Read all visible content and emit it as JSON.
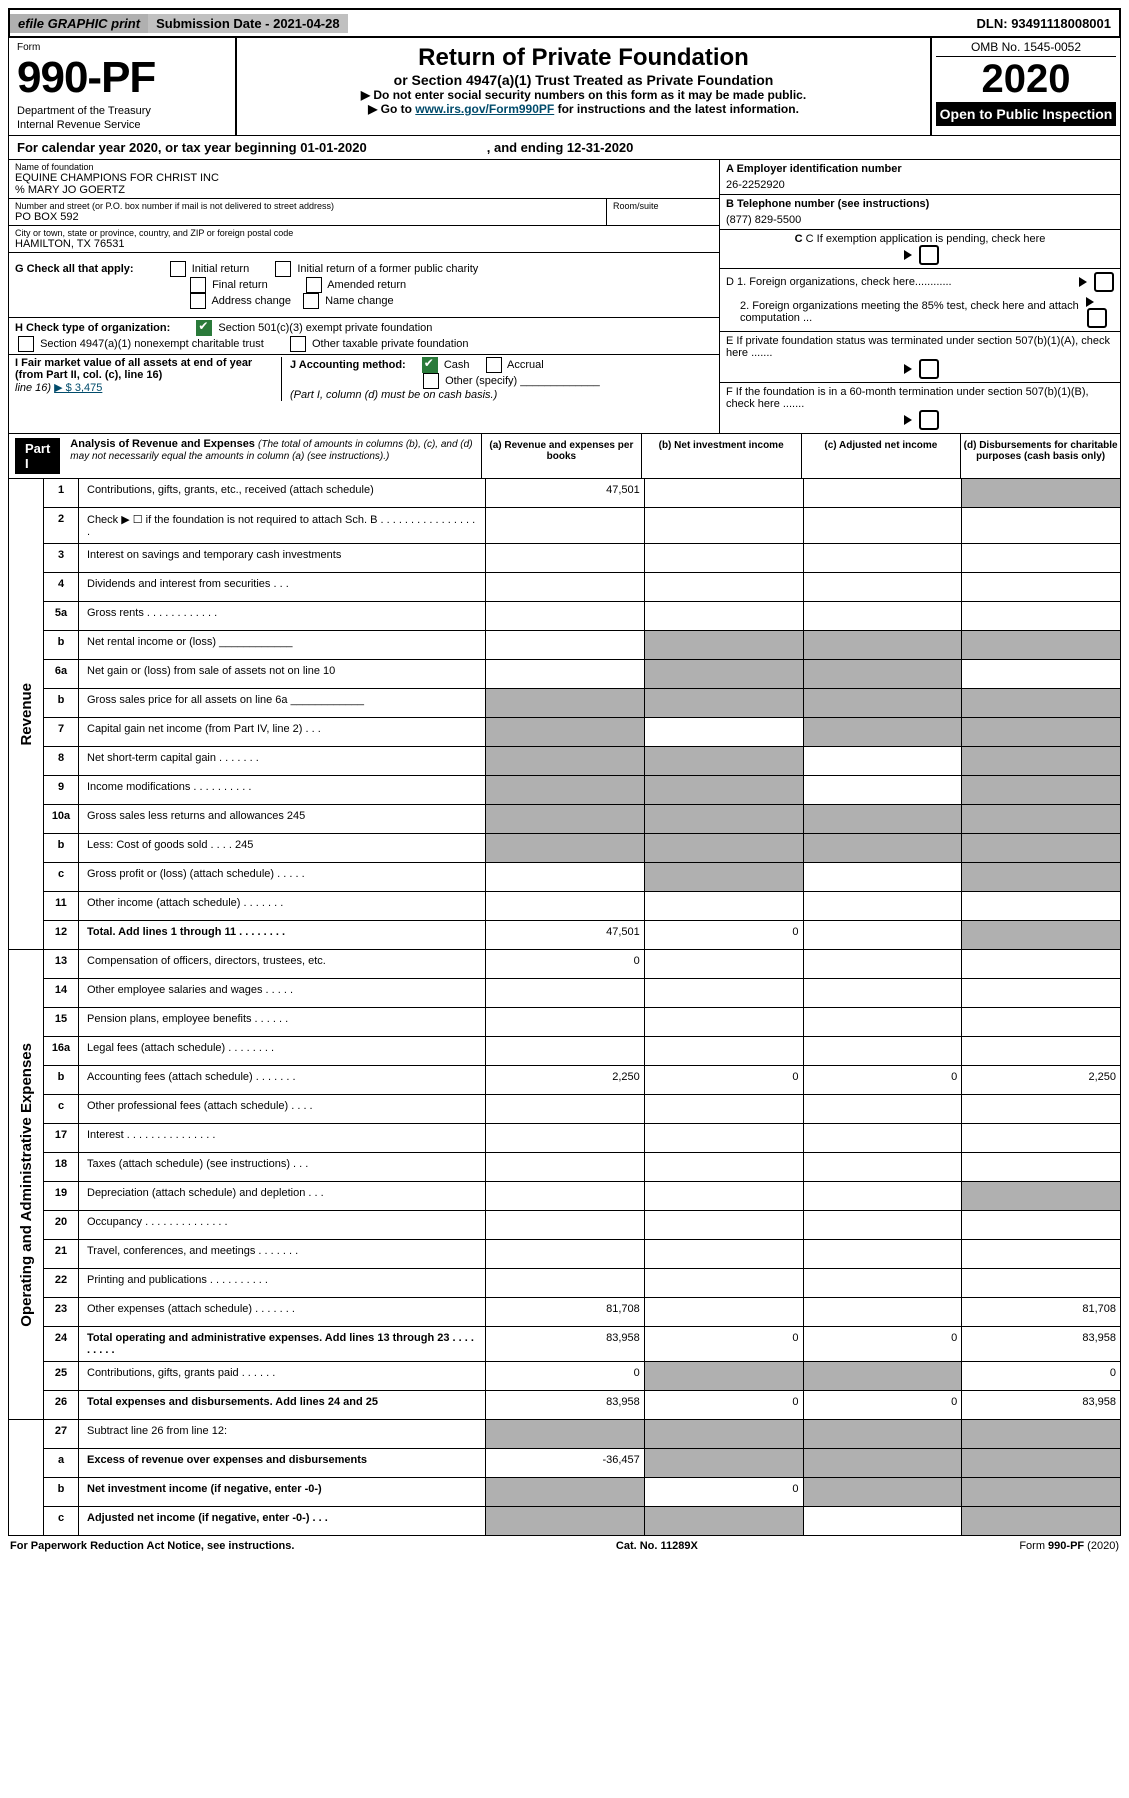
{
  "top_bar": {
    "efile": "efile GRAPHIC print",
    "submission": "Submission Date - 2021-04-28",
    "dln": "DLN: 93491118008001"
  },
  "header": {
    "form_label": "Form",
    "form_number": "990-PF",
    "dept": "Department of the Treasury",
    "irs": "Internal Revenue Service",
    "title": "Return of Private Foundation",
    "subtitle": "or Section 4947(a)(1) Trust Treated as Private Foundation",
    "note1": "▶ Do not enter social security numbers on this form as it may be made public.",
    "note2_pre": "▶ Go to ",
    "note2_link": "www.irs.gov/Form990PF",
    "note2_post": " for instructions and the latest information.",
    "omb": "OMB No. 1545-0052",
    "year": "2020",
    "open": "Open to Public Inspection"
  },
  "cal_year": {
    "pre": "For calendar year 2020, or tax year beginning 01-01-2020",
    "post": ", and ending 12-31-2020"
  },
  "name_block": {
    "name_lbl": "Name of foundation",
    "name": "EQUINE CHAMPIONS FOR CHRIST INC",
    "care_of": "% MARY JO GOERTZ",
    "addr_lbl": "Number and street (or P.O. box number if mail is not delivered to street address)",
    "addr": "PO BOX 592",
    "room_lbl": "Room/suite",
    "city_lbl": "City or town, state or province, country, and ZIP or foreign postal code",
    "city": "HAMILTON, TX  76531"
  },
  "right_block": {
    "a_lbl": "A Employer identification number",
    "a_val": "26-2252920",
    "b_lbl": "B Telephone number (see instructions)",
    "b_val": "(877) 829-5500",
    "c_lbl": "C If exemption application is pending, check here",
    "d1": "D 1. Foreign organizations, check here............",
    "d2": "2. Foreign organizations meeting the 85% test, check here and attach computation ...",
    "e_lbl": "E  If private foundation status was terminated under section 507(b)(1)(A), check here .......",
    "f_lbl": "F  If the foundation is in a 60-month termination under section 507(b)(1)(B), check here ......."
  },
  "g_row": {
    "lbl": "G Check all that apply:",
    "opts": [
      "Initial return",
      "Initial return of a former public charity",
      "Final return",
      "Amended return",
      "Address change",
      "Name change"
    ]
  },
  "h_row": {
    "lbl": "H Check type of organization:",
    "o1": "Section 501(c)(3) exempt private foundation",
    "o2": "Section 4947(a)(1) nonexempt charitable trust",
    "o3": "Other taxable private foundation"
  },
  "i_j": {
    "i_lbl": "I Fair market value of all assets at end of year (from Part II, col. (c), line 16)",
    "i_val": "▶ $  3,475",
    "j_lbl": "J Accounting method:",
    "j_cash": "Cash",
    "j_accr": "Accrual",
    "j_other": "Other (specify)",
    "j_note": "(Part I, column (d) must be on cash basis.)"
  },
  "part1_lbl": "Part I",
  "analysis_title": "Analysis of Revenue and Expenses",
  "analysis_note": "(The total of amounts in columns (b), (c), and (d) may not necessarily equal the amounts in column (a) (see instructions).)",
  "cols": {
    "a": "(a)   Revenue and expenses per books",
    "b": "(b)   Net investment income",
    "c": "(c)   Adjusted net income",
    "d": "(d)   Disbursements for charitable purposes (cash basis only)"
  },
  "vlabels": {
    "rev": "Revenue",
    "oae": "Operating and Administrative Expenses"
  },
  "revenue_rows": [
    {
      "n": "1",
      "txt": "Contributions, gifts, grants, etc., received (attach schedule)",
      "a": "47,501",
      "d_sh": true
    },
    {
      "n": "2",
      "txt": "Check ▶ ☐ if the foundation is not required to attach Sch. B  .  .  .  .  .  .  .  .  .  .  .  .  .  .  .  .  ."
    },
    {
      "n": "3",
      "txt": "Interest on savings and temporary cash investments"
    },
    {
      "n": "4",
      "txt": "Dividends and interest from securities    .    .    ."
    },
    {
      "n": "5a",
      "txt": "Gross rents    .    .    .    .    .    .    .    .    .    .    .    ."
    },
    {
      "n": "b",
      "txt": "Net rental income or (loss)  ____________",
      "b_sh": true,
      "c_sh": true,
      "d_sh": true
    },
    {
      "n": "6a",
      "txt": "Net gain or (loss) from sale of assets not on line 10",
      "b_sh": true,
      "c_sh": true
    },
    {
      "n": "b",
      "txt": "Gross sales price for all assets on line 6a ____________",
      "a_sh": true,
      "b_sh": true,
      "c_sh": true,
      "d_sh": true
    },
    {
      "n": "7",
      "txt": "Capital gain net income (from Part IV, line 2)    .    .    .",
      "a_sh": true,
      "c_sh": true,
      "d_sh": true
    },
    {
      "n": "8",
      "txt": "Net short-term capital gain    .    .    .    .    .    .    .",
      "a_sh": true,
      "b_sh": true,
      "d_sh": true
    },
    {
      "n": "9",
      "txt": "Income modifications  .    .    .    .    .    .    .    .    .    .",
      "a_sh": true,
      "b_sh": true,
      "d_sh": true
    },
    {
      "n": "10a",
      "txt": "Gross sales less returns and allowances            245",
      "a_sh": true,
      "b_sh": true,
      "c_sh": true,
      "d_sh": true
    },
    {
      "n": "b",
      "txt": "Less: Cost of goods sold    .    .    .    .              245",
      "a_sh": true,
      "b_sh": true,
      "c_sh": true,
      "d_sh": true
    },
    {
      "n": "c",
      "txt": "Gross profit or (loss) (attach schedule)    .    .    .    .    .",
      "b_sh": true,
      "d_sh": true
    },
    {
      "n": "11",
      "txt": "Other income (attach schedule)    .    .    .    .    .    .    ."
    },
    {
      "n": "12",
      "txt": "Total. Add lines 1 through 11    .    .    .    .    .    .    .    .",
      "bold": true,
      "a": "47,501",
      "b": "0",
      "d_sh": true
    }
  ],
  "expense_rows": [
    {
      "n": "13",
      "txt": "Compensation of officers, directors, trustees, etc.",
      "a": "0"
    },
    {
      "n": "14",
      "txt": "Other employee salaries and wages    .    .    .    .    ."
    },
    {
      "n": "15",
      "txt": "Pension plans, employee benefits    .    .    .    .    .    ."
    },
    {
      "n": "16a",
      "txt": "Legal fees (attach schedule)  .    .    .    .    .    .    .    ."
    },
    {
      "n": "b",
      "txt": "Accounting fees (attach schedule)  .    .    .    .    .    .    .",
      "a": "2,250",
      "b": "0",
      "c": "0",
      "d": "2,250"
    },
    {
      "n": "c",
      "txt": "Other professional fees (attach schedule)    .    .    .    ."
    },
    {
      "n": "17",
      "txt": "Interest  .    .    .    .    .    .    .    .    .    .    .    .    .    .    ."
    },
    {
      "n": "18",
      "txt": "Taxes (attach schedule) (see instructions)    .    .    ."
    },
    {
      "n": "19",
      "txt": "Depreciation (attach schedule) and depletion    .    .    .",
      "d_sh": true
    },
    {
      "n": "20",
      "txt": "Occupancy  .    .    .    .    .    .    .    .    .    .    .    .    .    ."
    },
    {
      "n": "21",
      "txt": "Travel, conferences, and meetings  .    .    .    .    .    .    ."
    },
    {
      "n": "22",
      "txt": "Printing and publications  .    .    .    .    .    .    .    .    .    ."
    },
    {
      "n": "23",
      "txt": "Other expenses (attach schedule)  .    .    .    .    .    .    .",
      "a": "81,708",
      "d": "81,708"
    },
    {
      "n": "24",
      "txt": "Total operating and administrative expenses. Add lines 13 through 23    .    .    .    .    .    .    .    .    .",
      "bold": true,
      "a": "83,958",
      "b": "0",
      "c": "0",
      "d": "83,958"
    },
    {
      "n": "25",
      "txt": "Contributions, gifts, grants paid    .    .    .    .    .    .",
      "a": "0",
      "b_sh": true,
      "c_sh": true,
      "d": "0"
    },
    {
      "n": "26",
      "txt": "Total expenses and disbursements. Add lines 24 and 25",
      "bold": true,
      "a": "83,958",
      "b": "0",
      "c": "0",
      "d": "83,958"
    }
  ],
  "bottom_rows": [
    {
      "n": "27",
      "txt": "Subtract line 26 from line 12:",
      "a_sh": true,
      "b_sh": true,
      "c_sh": true,
      "d_sh": true
    },
    {
      "n": "a",
      "txt": "Excess of revenue over expenses and disbursements",
      "bold": true,
      "a": "-36,457",
      "b_sh": true,
      "c_sh": true,
      "d_sh": true
    },
    {
      "n": "b",
      "txt": "Net investment income (if negative, enter -0-)",
      "bold": true,
      "a_sh": true,
      "b": "0",
      "c_sh": true,
      "d_sh": true
    },
    {
      "n": "c",
      "txt": "Adjusted net income (if negative, enter -0-)    .    .    .",
      "bold": true,
      "a_sh": true,
      "b_sh": true,
      "d_sh": true
    }
  ],
  "footer": {
    "left": "For Paperwork Reduction Act Notice, see instructions.",
    "mid": "Cat. No. 11289X",
    "right": "Form 990-PF (2020)"
  }
}
